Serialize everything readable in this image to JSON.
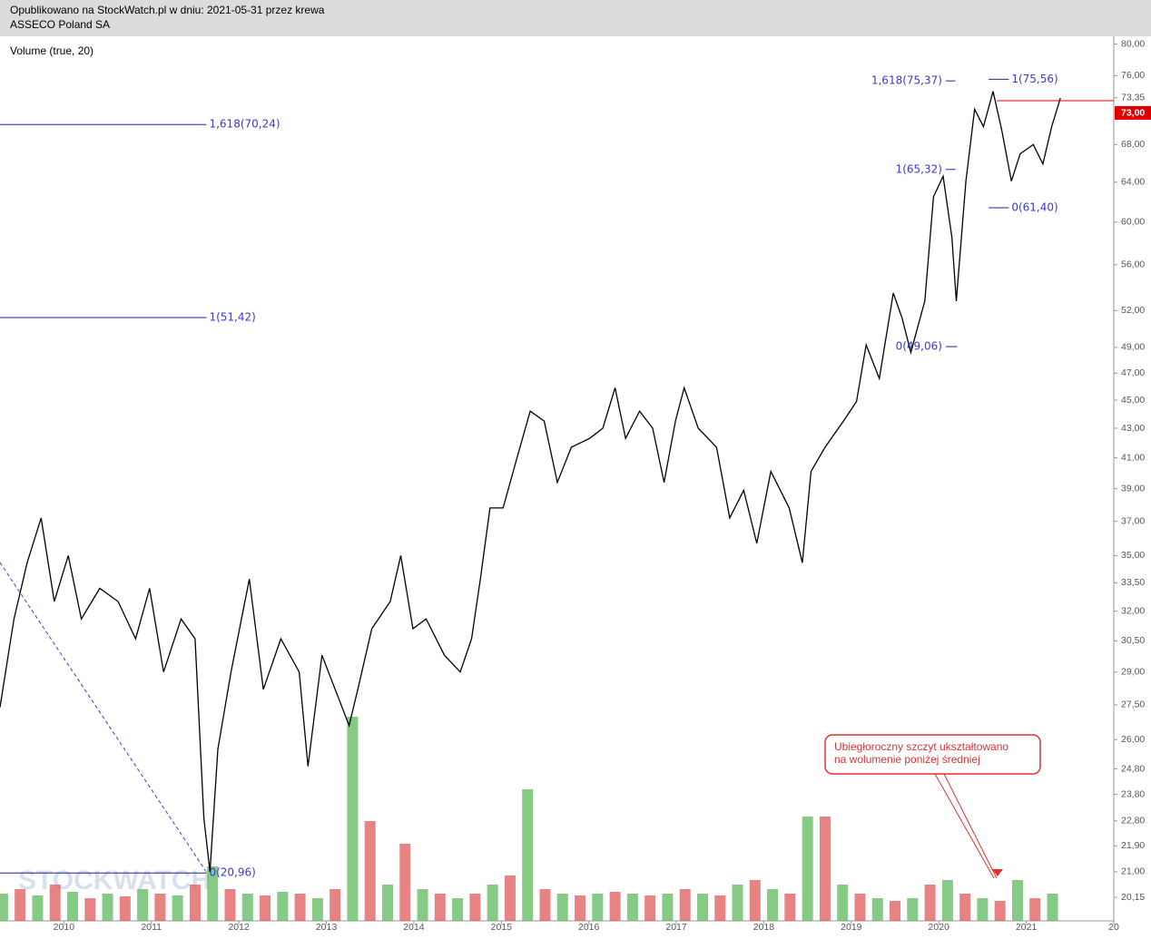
{
  "header": {
    "line1": "Opublikowano na StockWatch.pl w dniu: 2021-05-31 przez krewa",
    "line2": "ASSECO Poland SA"
  },
  "chart_data": {
    "type": "line",
    "indicator": "Volume (true, 20)",
    "log_scale": true,
    "color": "#000000",
    "xlim": [
      2009.27,
      2022
    ],
    "xticks": [
      2010,
      2011,
      2012,
      2013,
      2014,
      2015,
      2016,
      2017,
      2018,
      2019,
      2020,
      2021,
      {
        "value": 2022,
        "label": "20"
      }
    ],
    "ylim": [
      19.4,
      81
    ],
    "yticks": [
      {
        "value": 80,
        "label": "80,00"
      },
      {
        "value": 76,
        "label": "76,00"
      },
      {
        "value": 73.35,
        "label": "73,35"
      },
      {
        "value": 68,
        "label": "68,00"
      },
      {
        "value": 64,
        "label": "64,00"
      },
      {
        "value": 60,
        "label": "60,00"
      },
      {
        "value": 56,
        "label": "56,00"
      },
      {
        "value": 52,
        "label": "52,00"
      },
      {
        "value": 49,
        "label": "49,00"
      },
      {
        "value": 47,
        "label": "47,00"
      },
      {
        "value": 45,
        "label": "45,00"
      },
      {
        "value": 43,
        "label": "43,00"
      },
      {
        "value": 41,
        "label": "41,00"
      },
      {
        "value": 39,
        "label": "39,00"
      },
      {
        "value": 37,
        "label": "37,00"
      },
      {
        "value": 35,
        "label": "35,00"
      },
      {
        "value": 33.5,
        "label": "33,50"
      },
      {
        "value": 32,
        "label": "32,00"
      },
      {
        "value": 30.5,
        "label": "30,50"
      },
      {
        "value": 29,
        "label": "29,00"
      },
      {
        "value": 27.5,
        "label": "27,50"
      },
      {
        "value": 26,
        "label": "26,00"
      },
      {
        "value": 24.8,
        "label": "24,80"
      },
      {
        "value": 23.8,
        "label": "23,80"
      },
      {
        "value": 22.8,
        "label": "22,80"
      },
      {
        "value": 21.9,
        "label": "21,90"
      },
      {
        "value": 21,
        "label": "21,00"
      },
      {
        "value": 20.15,
        "label": "20,15"
      }
    ],
    "x": [
      2009.27,
      2009.43,
      2009.58,
      2009.74,
      2009.89,
      2010.05,
      2010.2,
      2010.41,
      2010.62,
      2010.82,
      2010.98,
      2011.14,
      2011.34,
      2011.5,
      2011.6,
      2011.67,
      2011.76,
      2011.91,
      2012.12,
      2012.28,
      2012.48,
      2012.69,
      2012.79,
      2012.95,
      2013.1,
      2013.26,
      2013.36,
      2013.52,
      2013.73,
      2013.85,
      2013.99,
      2014.14,
      2014.35,
      2014.53,
      2014.66,
      2014.76,
      2014.87,
      2015.02,
      2015.18,
      2015.33,
      2015.49,
      2015.64,
      2015.8,
      2016.01,
      2016.16,
      2016.3,
      2016.42,
      2016.58,
      2016.73,
      2016.86,
      2016.99,
      2017.09,
      2017.25,
      2017.46,
      2017.61,
      2017.77,
      2017.92,
      2018.08,
      2018.29,
      2018.44,
      2018.54,
      2018.7,
      2018.91,
      2019.06,
      2019.17,
      2019.32,
      2019.48,
      2019.58,
      2019.68,
      2019.84,
      2019.94,
      2020.05,
      2020.15,
      2020.2,
      2020.31,
      2020.41,
      2020.51,
      2020.62,
      2020.72,
      2020.83,
      2020.93,
      2021.08,
      2021.19,
      2021.29,
      2021.39
    ],
    "values": [
      27.4,
      31.6,
      34.6,
      37.2,
      32.5,
      35.0,
      31.6,
      33.2,
      32.5,
      30.6,
      33.2,
      29.0,
      31.6,
      30.6,
      22.9,
      21.0,
      25.6,
      29.0,
      33.7,
      28.2,
      30.6,
      29.0,
      24.9,
      29.8,
      28.2,
      26.6,
      28.2,
      31.1,
      32.5,
      35.0,
      31.1,
      31.6,
      29.8,
      29.0,
      30.6,
      33.7,
      37.8,
      37.8,
      41.0,
      44.2,
      43.5,
      39.4,
      41.7,
      42.3,
      43.0,
      45.9,
      42.3,
      44.2,
      43.0,
      39.4,
      43.5,
      45.9,
      43.0,
      41.7,
      37.2,
      38.9,
      35.7,
      40.1,
      37.8,
      34.6,
      40.1,
      41.7,
      43.5,
      44.9,
      49.2,
      46.6,
      53.5,
      51.4,
      48.6,
      52.8,
      62.5,
      64.6,
      58.5,
      52.8,
      64.1,
      72.0,
      70.0,
      74.1,
      69.6,
      64.1,
      67.0,
      68.0,
      65.9,
      70.0,
      73.3
    ],
    "last_price": {
      "value": 73,
      "label": "73,00",
      "color": "#e00000"
    },
    "volume": {
      "palette": [
        "#5cb85c",
        "#e05a5a"
      ],
      "ylim": [
        0,
        230
      ],
      "x": [
        2009.3,
        2009.5,
        2009.7,
        2009.9,
        2010.1,
        2010.3,
        2010.5,
        2010.7,
        2010.9,
        2011.1,
        2011.3,
        2011.5,
        2011.7,
        2011.9,
        2012.1,
        2012.3,
        2012.5,
        2012.7,
        2012.9,
        2013.1,
        2013.3,
        2013.5,
        2013.7,
        2013.9,
        2014.1,
        2014.3,
        2014.5,
        2014.7,
        2014.9,
        2015.1,
        2015.3,
        2015.5,
        2015.7,
        2015.9,
        2016.1,
        2016.3,
        2016.5,
        2016.7,
        2016.9,
        2017.1,
        2017.3,
        2017.5,
        2017.7,
        2017.9,
        2018.1,
        2018.3,
        2018.5,
        2018.7,
        2018.9,
        2019.1,
        2019.3,
        2019.5,
        2019.7,
        2019.9,
        2020.1,
        2020.3,
        2020.5,
        2020.7,
        2020.9,
        2021.1,
        2021.3
      ],
      "values": [
        30,
        35,
        28,
        40,
        32,
        25,
        30,
        27,
        35,
        30,
        28,
        40,
        60,
        35,
        30,
        28,
        32,
        30,
        25,
        35,
        225,
        110,
        40,
        85,
        35,
        30,
        25,
        30,
        40,
        50,
        145,
        35,
        30,
        28,
        30,
        32,
        30,
        28,
        30,
        35,
        30,
        28,
        40,
        45,
        35,
        30,
        115,
        115,
        40,
        30,
        25,
        22,
        25,
        40,
        45,
        30,
        25,
        22,
        45,
        25,
        30
      ]
    },
    "annotations": [
      {
        "label": "1,618(70,24)",
        "value": 70.24,
        "x": [
          2009.27,
          2011.63
        ],
        "side": "right"
      },
      {
        "label": "1(51,42)",
        "value": 51.42,
        "x": [
          2009.27,
          2011.63
        ],
        "side": "right"
      },
      {
        "label": "0(20,96)",
        "value": 20.96,
        "x": [
          2009.27,
          2011.63
        ],
        "side": "right"
      },
      {
        "label": "1,618(75,37)",
        "value": 75.37,
        "x": [
          2020.08,
          2020.19
        ],
        "side": "left"
      },
      {
        "label": "1(65,32)",
        "value": 65.32,
        "x": [
          2020.08,
          2020.19
        ],
        "side": "left"
      },
      {
        "label": "0(49,06)",
        "value": 49.06,
        "x": [
          2020.08,
          2020.21
        ],
        "side": "left"
      },
      {
        "label": "1(75,56)",
        "value": 75.56,
        "x": [
          2020.57,
          2020.8
        ],
        "side": "right"
      },
      {
        "label": "0(61,40)",
        "value": 61.4,
        "x": [
          2020.57,
          2020.8
        ],
        "side": "right"
      }
    ],
    "callout": {
      "line1": "Ubiegłoroczny szczyt ukształtowano",
      "line2": "na wolumenie poniżej średniej"
    },
    "watermark": "STOCKWATCH"
  }
}
